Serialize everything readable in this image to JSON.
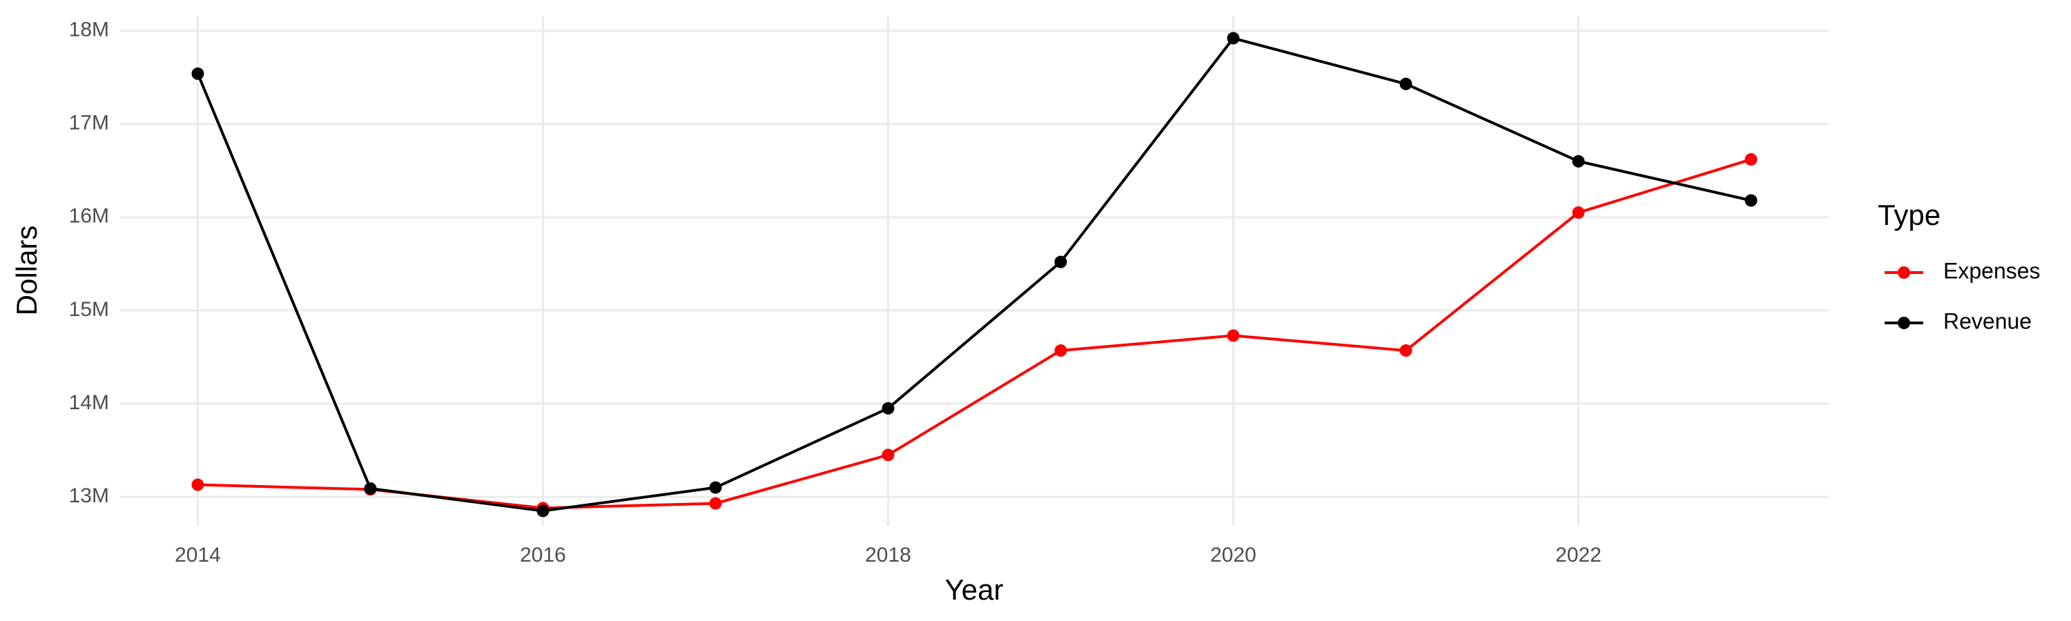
{
  "chart_data": {
    "type": "line",
    "x_label": "Year",
    "y_label": "Dollars",
    "legend_title": "Type",
    "x": [
      2014,
      2015,
      2016,
      2017,
      2018,
      2019,
      2020,
      2021,
      2022,
      2023
    ],
    "series": [
      {
        "name": "Expenses",
        "color": "#ff0000",
        "values": [
          13130000,
          13080000,
          12880000,
          12930000,
          13450000,
          14570000,
          14730000,
          14570000,
          16050000,
          16620000
        ]
      },
      {
        "name": "Revenue",
        "color": "#000000",
        "values": [
          17540000,
          13090000,
          12850000,
          13100000,
          13950000,
          15520000,
          17920000,
          17430000,
          16600000,
          16180000
        ]
      }
    ],
    "xlim": [
      2013.55,
      2023.45
    ],
    "xticks": [
      2014,
      2016,
      2018,
      2020,
      2022
    ],
    "ylim": [
      12690000,
      18160000
    ],
    "yticks": [
      {
        "value": 13000000,
        "label": "13M"
      },
      {
        "value": 14000000,
        "label": "14M"
      },
      {
        "value": 15000000,
        "label": "15M"
      },
      {
        "value": 16000000,
        "label": "16M"
      },
      {
        "value": 17000000,
        "label": "17M"
      },
      {
        "value": 18000000,
        "label": "18M"
      }
    ],
    "grid": true,
    "legend": "right"
  }
}
